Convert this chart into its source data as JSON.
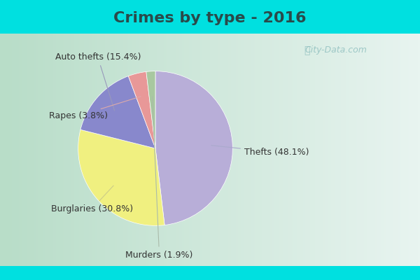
{
  "title": "Crimes by type - 2016",
  "values": [
    48.1,
    30.8,
    15.4,
    3.8,
    1.9
  ],
  "colors": [
    "#b8aed8",
    "#f0f080",
    "#8888cc",
    "#e89898",
    "#a8c8a0"
  ],
  "label_texts": [
    "Thefts (48.1%)",
    "Burglaries (30.8%)",
    "Auto thefts (15.4%)",
    "Rapes (3.8%)",
    "Murders (1.9%)"
  ],
  "bg_cyan": "#00e0e0",
  "bg_main_left": "#c0e8d0",
  "bg_main_right": "#e8f4ee",
  "title_fontsize": 16,
  "watermark": "City-Data.com",
  "title_color": "#2a4a4a",
  "label_color": "#333333",
  "label_fontsize": 9
}
